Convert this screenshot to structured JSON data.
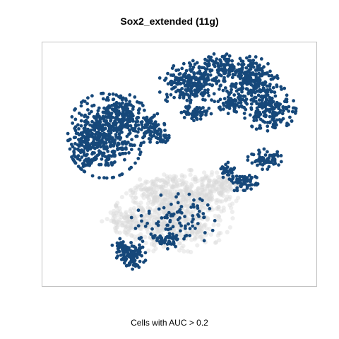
{
  "chart_data": {
    "type": "scatter",
    "title": "Sox2_extended (11g)",
    "xlabel": "Cells with AUC > 0.2",
    "ylabel": "",
    "xlim": [
      0,
      100
    ],
    "ylim": [
      0,
      100
    ],
    "grid": false,
    "axes_ticks": false,
    "colors": {
      "positive": "#16487a",
      "negative": "#d9d9d9",
      "frame": "#bfbfbf"
    },
    "series": [
      {
        "role": "cells-below-threshold",
        "color": "#d9d9d9",
        "clusters": [
          {
            "cx": 47,
            "cy": 27,
            "rx": 20,
            "ry": 14,
            "n": 520
          },
          {
            "cx": 30,
            "cy": 25,
            "rx": 9,
            "ry": 5,
            "n": 90
          },
          {
            "cx": 55,
            "cy": 38,
            "rx": 16,
            "ry": 8,
            "n": 240
          },
          {
            "cx": 66,
            "cy": 41,
            "rx": 8,
            "ry": 4,
            "n": 70
          },
          {
            "cx": 38,
            "cy": 38,
            "rx": 7,
            "ry": 5,
            "n": 70
          }
        ]
      },
      {
        "role": "cells-above-threshold",
        "color": "#16487a",
        "clusters": [
          {
            "cx": 21,
            "cy": 62,
            "rx": 13,
            "ry": 16,
            "n": 460
          },
          {
            "cx": 28,
            "cy": 72,
            "rx": 7,
            "ry": 7,
            "n": 110
          },
          {
            "cx": 13,
            "cy": 58,
            "rx": 5,
            "ry": 9,
            "n": 70
          },
          {
            "cx": 38,
            "cy": 66,
            "rx": 5,
            "ry": 6,
            "n": 70
          },
          {
            "cx": 43,
            "cy": 61,
            "rx": 3,
            "ry": 3,
            "n": 30
          },
          {
            "cx": 54,
            "cy": 84,
            "rx": 11,
            "ry": 9,
            "n": 230
          },
          {
            "cx": 64,
            "cy": 92,
            "rx": 9,
            "ry": 5,
            "n": 110
          },
          {
            "cx": 77,
            "cy": 86,
            "rx": 9,
            "ry": 9,
            "n": 230
          },
          {
            "cx": 84,
            "cy": 74,
            "rx": 9,
            "ry": 9,
            "n": 190
          },
          {
            "cx": 56,
            "cy": 72,
            "rx": 5,
            "ry": 3,
            "n": 60
          },
          {
            "cx": 70,
            "cy": 76,
            "rx": 5,
            "ry": 4,
            "n": 60
          },
          {
            "cx": 82,
            "cy": 52,
            "rx": 6,
            "ry": 4,
            "n": 70
          },
          {
            "cx": 74,
            "cy": 42,
            "rx": 5,
            "ry": 4,
            "n": 60
          },
          {
            "cx": 68,
            "cy": 47,
            "rx": 3,
            "ry": 3,
            "n": 30
          },
          {
            "cx": 31,
            "cy": 10,
            "rx": 5,
            "ry": 5,
            "n": 100
          },
          {
            "cx": 27,
            "cy": 14,
            "rx": 3,
            "ry": 3,
            "n": 30
          },
          {
            "cx": 45,
            "cy": 17,
            "rx": 5,
            "ry": 3,
            "n": 40
          },
          {
            "cx": 47,
            "cy": 25,
            "rx": 14,
            "ry": 11,
            "n": 100
          }
        ]
      }
    ]
  }
}
